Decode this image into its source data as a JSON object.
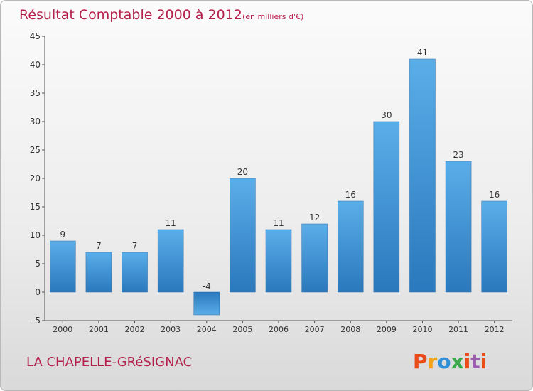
{
  "chart_data": {
    "type": "bar",
    "title": "Résultat Comptable 2000 à 2012",
    "subtitle": "(en milliers d'€)",
    "categories": [
      "2000",
      "2001",
      "2002",
      "2003",
      "2004",
      "2005",
      "2006",
      "2007",
      "2008",
      "2009",
      "2010",
      "2011",
      "2012"
    ],
    "values": [
      9,
      7,
      7,
      11,
      -4,
      20,
      11,
      12,
      16,
      30,
      41,
      23,
      16
    ],
    "ylim": [
      -5,
      45
    ],
    "yticks": [
      -5,
      0,
      5,
      10,
      15,
      20,
      25,
      30,
      35,
      40,
      45
    ],
    "grid": false,
    "legend": "none",
    "bar_color": "#4a9de0"
  },
  "footer": {
    "place_name": "LA CHAPELLE-GRéSIGNAC",
    "logo_text": "Proxiti",
    "logo_colors": [
      "#e94b1b",
      "#f5a31a",
      "#2f8fd8",
      "#3aa84a",
      "#e94b1b",
      "#9c5bb0",
      "#e94b1b"
    ]
  }
}
